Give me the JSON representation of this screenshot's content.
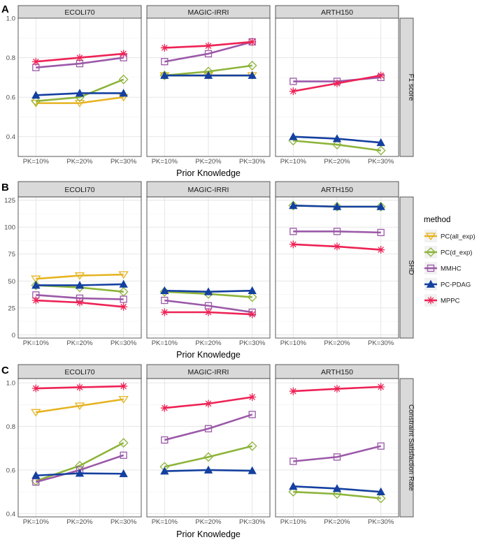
{
  "legend": {
    "title": "method",
    "items": [
      {
        "name": "PC(all_exp)",
        "color": "#E6B422",
        "shape": "triangle-down-open"
      },
      {
        "name": "PC(d_exp)",
        "color": "#8DB43A",
        "shape": "diamond-open"
      },
      {
        "name": "MMHC",
        "color": "#9B59A8",
        "shape": "square-open"
      },
      {
        "name": "PC-PDAG",
        "color": "#1440A0",
        "shape": "triangle-up-filled"
      },
      {
        "name": "MPPC",
        "color": "#EE2255",
        "shape": "asterisk"
      }
    ]
  },
  "chart_data": [
    {
      "panel": "A",
      "type": "line",
      "strip_label": "F1 score",
      "xlabel": "Prior Knowledge",
      "ylabel": "",
      "categories": [
        "PK=10%",
        "PK=20%",
        "PK=30%"
      ],
      "ylim": [
        0.3,
        1.0
      ],
      "yticks": [
        0.4,
        0.6,
        0.8,
        1.0
      ],
      "ytick_labels": [
        "0.4",
        "0.6",
        "0.8",
        "1.0"
      ],
      "facets": [
        {
          "title": "ECOLI70",
          "series": [
            {
              "name": "PC(all_exp)",
              "values": [
                0.57,
                0.57,
                0.6
              ]
            },
            {
              "name": "PC(d_exp)",
              "values": [
                0.58,
                0.6,
                0.69
              ]
            },
            {
              "name": "MMHC",
              "values": [
                0.75,
                0.77,
                0.8
              ]
            },
            {
              "name": "PC-PDAG",
              "values": [
                0.61,
                0.62,
                0.62
              ]
            },
            {
              "name": "MPPC",
              "values": [
                0.78,
                0.8,
                0.82
              ]
            }
          ]
        },
        {
          "title": "MAGIC-IRRI",
          "series": [
            {
              "name": "PC(all_exp)",
              "values": [
                0.71,
                0.71,
                0.71
              ]
            },
            {
              "name": "PC(d_exp)",
              "values": [
                0.71,
                0.73,
                0.76
              ]
            },
            {
              "name": "MMHC",
              "values": [
                0.78,
                0.82,
                0.88
              ]
            },
            {
              "name": "PC-PDAG",
              "values": [
                0.71,
                0.71,
                0.71
              ]
            },
            {
              "name": "MPPC",
              "values": [
                0.85,
                0.86,
                0.88
              ]
            }
          ]
        },
        {
          "title": "ARTH150",
          "series": [
            {
              "name": "PC(d_exp)",
              "values": [
                0.38,
                0.36,
                0.33
              ]
            },
            {
              "name": "MMHC",
              "values": [
                0.68,
                0.68,
                0.7
              ]
            },
            {
              "name": "PC-PDAG",
              "values": [
                0.4,
                0.39,
                0.37
              ]
            },
            {
              "name": "MPPC",
              "values": [
                0.63,
                0.67,
                0.71
              ]
            }
          ]
        }
      ]
    },
    {
      "panel": "B",
      "type": "line",
      "strip_label": "SHD",
      "xlabel": "Prior Knowledge",
      "ylabel": "",
      "categories": [
        "PK=10%",
        "PK=20%",
        "PK=30%"
      ],
      "ylim": [
        -3,
        128
      ],
      "yticks": [
        0,
        25,
        50,
        75,
        100,
        125
      ],
      "ytick_labels": [
        "0",
        "25",
        "50",
        "75",
        "100",
        "125"
      ],
      "facets": [
        {
          "title": "ECOLI70",
          "series": [
            {
              "name": "PC(all_exp)",
              "values": [
                52,
                55,
                56
              ]
            },
            {
              "name": "PC(d_exp)",
              "values": [
                46,
                44,
                40
              ]
            },
            {
              "name": "MMHC",
              "values": [
                37,
                34,
                33
              ]
            },
            {
              "name": "PC-PDAG",
              "values": [
                46,
                46,
                47
              ]
            },
            {
              "name": "MPPC",
              "values": [
                32,
                30,
                26
              ]
            }
          ]
        },
        {
          "title": "MAGIC-IRRI",
          "series": [
            {
              "name": "PC(d_exp)",
              "values": [
                40,
                38,
                35
              ]
            },
            {
              "name": "MMHC",
              "values": [
                32,
                27,
                21
              ]
            },
            {
              "name": "PC-PDAG",
              "values": [
                41,
                40,
                41
              ]
            },
            {
              "name": "MPPC",
              "values": [
                21,
                21,
                19
              ]
            }
          ]
        },
        {
          "title": "ARTH150",
          "series": [
            {
              "name": "PC(d_exp)",
              "values": [
                120,
                119,
                119
              ]
            },
            {
              "name": "MMHC",
              "values": [
                96,
                96,
                95
              ]
            },
            {
              "name": "PC-PDAG",
              "values": [
                120,
                119,
                119
              ]
            },
            {
              "name": "MPPC",
              "values": [
                84,
                82,
                79
              ]
            }
          ]
        }
      ]
    },
    {
      "panel": "C",
      "type": "line",
      "strip_label": "Constraint Satisfaction Rate",
      "xlabel": "Prior Knowledge",
      "ylabel": "",
      "categories": [
        "PK=10%",
        "PK=20%",
        "PK=30%"
      ],
      "ylim": [
        0.385,
        1.02
      ],
      "yticks": [
        0.4,
        0.6,
        0.8,
        1.0
      ],
      "ytick_labels": [
        "0.4",
        "0.6",
        "0.8",
        "1.0"
      ],
      "facets": [
        {
          "title": "ECOLI70",
          "series": [
            {
              "name": "PC(all_exp)",
              "values": [
                0.865,
                0.895,
                0.925
              ]
            },
            {
              "name": "PC(d_exp)",
              "values": [
                0.55,
                0.62,
                0.725
              ]
            },
            {
              "name": "MMHC",
              "values": [
                0.545,
                0.6,
                0.668
              ]
            },
            {
              "name": "PC-PDAG",
              "values": [
                0.575,
                0.585,
                0.583
              ]
            },
            {
              "name": "MPPC",
              "values": [
                0.975,
                0.98,
                0.985
              ]
            }
          ]
        },
        {
          "title": "MAGIC-IRRI",
          "series": [
            {
              "name": "PC(d_exp)",
              "values": [
                0.615,
                0.66,
                0.71
              ]
            },
            {
              "name": "MMHC",
              "values": [
                0.738,
                0.79,
                0.855
              ]
            },
            {
              "name": "PC-PDAG",
              "values": [
                0.595,
                0.6,
                0.597
              ]
            },
            {
              "name": "MPPC",
              "values": [
                0.885,
                0.905,
                0.935
              ]
            }
          ]
        },
        {
          "title": "ARTH150",
          "series": [
            {
              "name": "PC(d_exp)",
              "values": [
                0.5,
                0.49,
                0.47
              ]
            },
            {
              "name": "MMHC",
              "values": [
                0.64,
                0.66,
                0.71
              ]
            },
            {
              "name": "PC-PDAG",
              "values": [
                0.525,
                0.515,
                0.5
              ]
            },
            {
              "name": "MPPC",
              "values": [
                0.962,
                0.973,
                0.982
              ]
            }
          ]
        }
      ]
    }
  ]
}
